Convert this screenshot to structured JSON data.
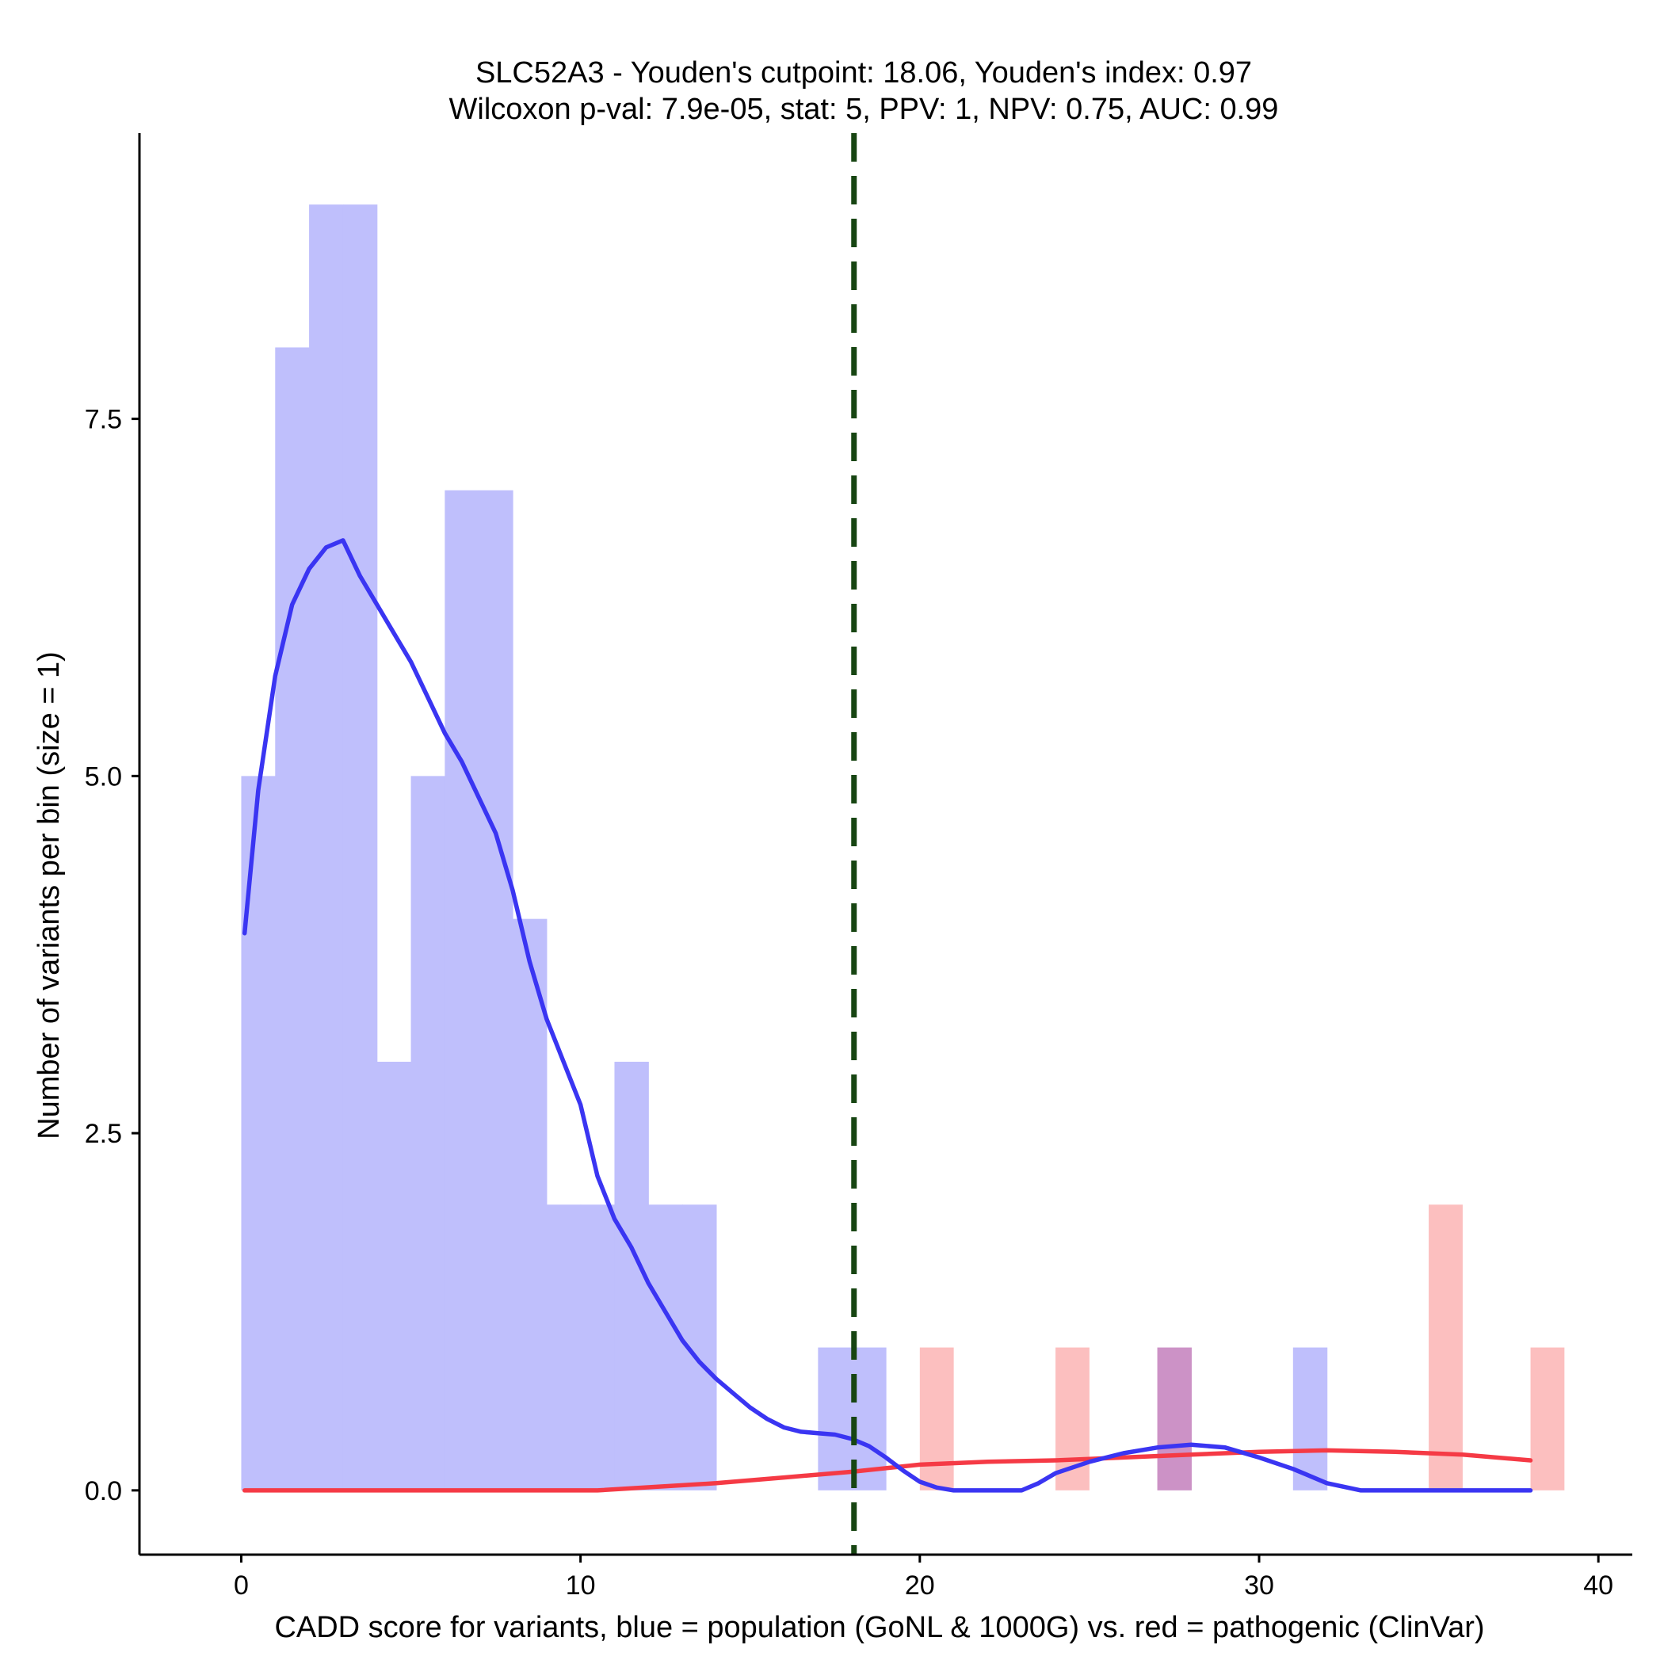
{
  "chart_data": {
    "type": "histogram_with_density",
    "title_line1": "SLC52A3 - Youden's cutpoint: 18.06, Youden's index: 0.97",
    "title_line2": "Wilcoxon p-val: 7.9e-05, stat: 5, PPV: 1, NPV: 0.75, AUC: 0.99",
    "xlabel": "CADD score for variants, blue = population (GoNL & 1000G) vs. red = pathogenic (ClinVar)",
    "ylabel": "Number of variants per bin (size = 1)",
    "xlim": [
      -3,
      41
    ],
    "ylim": [
      -0.45,
      9.5
    ],
    "x_ticks": [
      0,
      10,
      20,
      30,
      40
    ],
    "x_tick_labels": [
      "0",
      "10",
      "20",
      "30",
      "40"
    ],
    "y_ticks": [
      0,
      2.5,
      5,
      7.5
    ],
    "y_tick_labels": [
      "0.0",
      "2.5",
      "5.0",
      "7.5"
    ],
    "cutpoint": 18.06,
    "colors": {
      "population_bar": "#bfbffc",
      "pathogenic_bar": "#fcbfbf",
      "overlap_bar": "#cc92c6",
      "population_line": "#3a35f2",
      "pathogenic_line": "#f53a45",
      "cutpoint_line": "#174512"
    },
    "population_bins": [
      {
        "x0": 0,
        "x1": 1,
        "count": 5
      },
      {
        "x0": 1,
        "x1": 2,
        "count": 8
      },
      {
        "x0": 2,
        "x1": 3,
        "count": 9
      },
      {
        "x0": 3,
        "x1": 4,
        "count": 9
      },
      {
        "x0": 4,
        "x1": 5,
        "count": 3
      },
      {
        "x0": 5,
        "x1": 6,
        "count": 5
      },
      {
        "x0": 6,
        "x1": 7,
        "count": 7
      },
      {
        "x0": 7,
        "x1": 8,
        "count": 7
      },
      {
        "x0": 8,
        "x1": 9,
        "count": 4
      },
      {
        "x0": 9,
        "x1": 10,
        "count": 2
      },
      {
        "x0": 10,
        "x1": 11,
        "count": 2
      },
      {
        "x0": 11,
        "x1": 12,
        "count": 3
      },
      {
        "x0": 12,
        "x1": 13,
        "count": 2
      },
      {
        "x0": 13,
        "x1": 14,
        "count": 2
      },
      {
        "x0": 17,
        "x1": 18,
        "count": 1
      },
      {
        "x0": 18,
        "x1": 19,
        "count": 1
      },
      {
        "x0": 27,
        "x1": 28,
        "count": 1
      },
      {
        "x0": 31,
        "x1": 32,
        "count": 1
      }
    ],
    "pathogenic_bins": [
      {
        "x0": 20,
        "x1": 21,
        "count": 1
      },
      {
        "x0": 24,
        "x1": 25,
        "count": 1
      },
      {
        "x0": 27,
        "x1": 28,
        "count": 1
      },
      {
        "x0": 35,
        "x1": 36,
        "count": 2
      },
      {
        "x0": 38,
        "x1": 39,
        "count": 1
      }
    ],
    "population_density_line": {
      "x": [
        0.1,
        0.5,
        1.0,
        1.5,
        2.0,
        2.5,
        3.0,
        3.5,
        4.0,
        4.5,
        5.0,
        5.5,
        6.0,
        6.5,
        7.0,
        7.5,
        8.0,
        8.5,
        9.0,
        9.5,
        10.0,
        10.5,
        11.0,
        11.5,
        12.0,
        12.5,
        13.0,
        13.5,
        14.0,
        14.5,
        15.0,
        15.5,
        16.0,
        16.5,
        17.0,
        17.5,
        18.0,
        18.5,
        19.0,
        19.5,
        20.0,
        20.5,
        21.0,
        21.5,
        22.0,
        23.0,
        23.5,
        24.0,
        25.0,
        26.0,
        27.0,
        28.0,
        29.0,
        30.0,
        31.0,
        32.0,
        33.0,
        34.0,
        35.0,
        36.0,
        37.0,
        38.0
      ],
      "y": [
        3.9,
        4.9,
        5.7,
        6.2,
        6.45,
        6.6,
        6.65,
        6.4,
        6.2,
        6.0,
        5.8,
        5.55,
        5.3,
        5.1,
        4.85,
        4.6,
        4.2,
        3.7,
        3.3,
        3.0,
        2.7,
        2.2,
        1.9,
        1.7,
        1.45,
        1.25,
        1.05,
        0.9,
        0.78,
        0.68,
        0.58,
        0.5,
        0.44,
        0.41,
        0.4,
        0.39,
        0.36,
        0.31,
        0.23,
        0.14,
        0.06,
        0.02,
        0.0,
        0.0,
        0.0,
        0.0,
        0.05,
        0.12,
        0.2,
        0.26,
        0.3,
        0.32,
        0.3,
        0.23,
        0.15,
        0.05,
        0.0,
        0.0,
        0.0,
        0.0,
        0.0,
        0.0
      ]
    },
    "pathogenic_density_line": {
      "x": [
        0.1,
        10.5,
        14.0,
        16.0,
        18.0,
        20.0,
        22.0,
        24.0,
        26.0,
        28.0,
        30.0,
        32.0,
        34.0,
        36.0,
        38.0
      ],
      "y": [
        0.0,
        0.0,
        0.05,
        0.09,
        0.13,
        0.18,
        0.2,
        0.21,
        0.23,
        0.25,
        0.27,
        0.28,
        0.27,
        0.25,
        0.21
      ]
    }
  }
}
